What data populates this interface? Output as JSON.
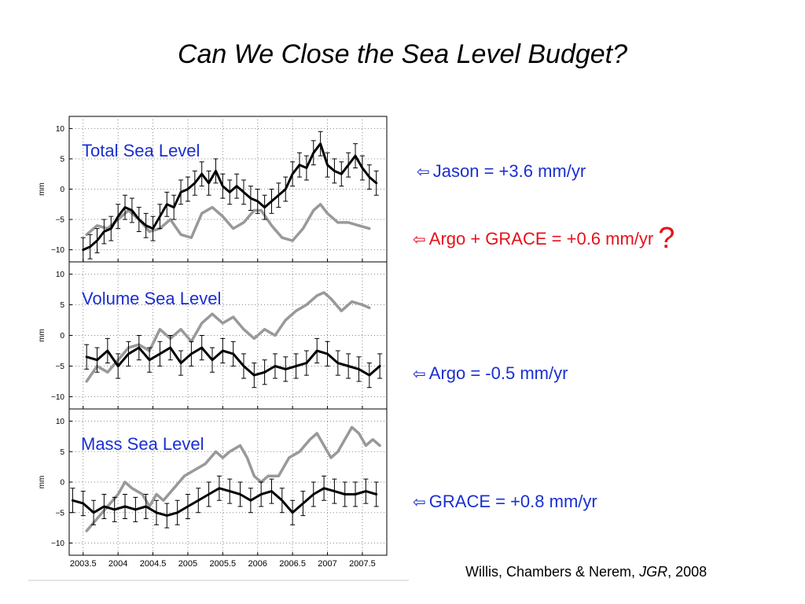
{
  "title": "Can We Close the Sea Level Budget?",
  "annotations": {
    "jason": {
      "arrow": "arrow-left-icon",
      "text": "Jason = +3.6 mm/yr",
      "color": "#1a2fd1"
    },
    "argo_grace": {
      "arrow": "arrow-left-icon",
      "text": "Argo + GRACE = +0.6 mm/yr",
      "qmark": "?",
      "color": "#e8101a"
    },
    "argo": {
      "arrow": "arrow-left-icon",
      "text": "Argo =  -0.5 mm/yr",
      "color": "#1a2fd1"
    },
    "grace": {
      "arrow": "arrow-left-icon",
      "text": "GRACE = +0.8 mm/yr",
      "color": "#1a2fd1"
    }
  },
  "citation": {
    "authors": "Willis, Chambers & Nerem,",
    "journal": "JGR",
    "year": ", 2008"
  },
  "chart_data": [
    {
      "type": "line",
      "label": "Total Sea Level",
      "ylabel": "mm",
      "ylim": [
        -12,
        12
      ],
      "yticks": [
        10,
        5,
        0,
        -5,
        -10
      ],
      "ytick_labels": [
        "10",
        "5",
        "0",
        "−5",
        "−10"
      ],
      "xlim": [
        2003.3,
        2007.85
      ],
      "grid": true,
      "series": [
        {
          "color": "#000000",
          "error_bars": true,
          "x": [
            2003.5,
            2003.6,
            2003.7,
            2003.8,
            2003.9,
            2004.0,
            2004.1,
            2004.2,
            2004.3,
            2004.4,
            2004.5,
            2004.6,
            2004.7,
            2004.8,
            2004.9,
            2005.0,
            2005.1,
            2005.2,
            2005.3,
            2005.4,
            2005.5,
            2005.6,
            2005.7,
            2005.8,
            2005.9,
            2006.0,
            2006.1,
            2006.2,
            2006.3,
            2006.4,
            2006.5,
            2006.6,
            2006.7,
            2006.8,
            2006.9,
            2007.0,
            2007.1,
            2007.2,
            2007.3,
            2007.4,
            2007.5,
            2007.6,
            2007.7
          ],
          "y": [
            -10,
            -9.5,
            -8.5,
            -7,
            -6.5,
            -4.5,
            -3,
            -3.5,
            -5,
            -6,
            -6.5,
            -4.5,
            -2.5,
            -3,
            -0.5,
            0,
            1,
            2.5,
            1,
            3,
            0.5,
            -0.5,
            0.5,
            -0.5,
            -1.5,
            -2,
            -3,
            -2,
            -1,
            0,
            2.5,
            4,
            3.5,
            6,
            7.5,
            4,
            3,
            2.5,
            4,
            5.5,
            3.5,
            2,
            1
          ]
        },
        {
          "color": "#999999",
          "error_bars": false,
          "x": [
            2003.55,
            2003.7,
            2003.85,
            2004.0,
            2004.15,
            2004.3,
            2004.45,
            2004.6,
            2004.75,
            2004.9,
            2005.05,
            2005.2,
            2005.35,
            2005.5,
            2005.65,
            2005.8,
            2005.95,
            2006.05,
            2006.2,
            2006.35,
            2006.5,
            2006.65,
            2006.8,
            2006.9,
            2007.0,
            2007.15,
            2007.3,
            2007.45,
            2007.6
          ],
          "y": [
            -7.5,
            -6,
            -6.5,
            -5,
            -3.5,
            -5,
            -7,
            -6.5,
            -5,
            -7.5,
            -8,
            -4,
            -3,
            -4.5,
            -6.5,
            -5.5,
            -3.5,
            -3.5,
            -6,
            -8,
            -8.5,
            -6.5,
            -3.5,
            -2.5,
            -4,
            -5.5,
            -5.5,
            -6,
            -6.5
          ]
        }
      ]
    },
    {
      "type": "line",
      "label": "Volume Sea Level",
      "ylabel": "mm",
      "ylim": [
        -12,
        12
      ],
      "yticks": [
        10,
        5,
        0,
        -5,
        -10
      ],
      "ytick_labels": [
        "10",
        "5",
        "0",
        "−5",
        "−10"
      ],
      "xlim": [
        2003.3,
        2007.85
      ],
      "grid": true,
      "series": [
        {
          "color": "#000000",
          "error_bars": true,
          "x": [
            2003.55,
            2003.7,
            2003.85,
            2004.0,
            2004.15,
            2004.3,
            2004.45,
            2004.6,
            2004.75,
            2004.9,
            2005.05,
            2005.2,
            2005.35,
            2005.5,
            2005.65,
            2005.8,
            2005.95,
            2006.1,
            2006.25,
            2006.4,
            2006.55,
            2006.7,
            2006.85,
            2007.0,
            2007.15,
            2007.3,
            2007.45,
            2007.6,
            2007.75
          ],
          "y": [
            -3.5,
            -4,
            -2.5,
            -5,
            -3,
            -2,
            -4,
            -3,
            -2,
            -4.5,
            -3,
            -2,
            -4,
            -2.5,
            -3,
            -5,
            -6.5,
            -6,
            -5,
            -5.5,
            -5,
            -4.5,
            -2.5,
            -3,
            -4.5,
            -5,
            -5.5,
            -6.5,
            -5
          ]
        },
        {
          "color": "#999999",
          "error_bars": false,
          "x": [
            2003.55,
            2003.7,
            2003.85,
            2004.0,
            2004.15,
            2004.3,
            2004.45,
            2004.6,
            2004.75,
            2004.9,
            2005.05,
            2005.2,
            2005.35,
            2005.5,
            2005.65,
            2005.8,
            2005.95,
            2006.1,
            2006.25,
            2006.4,
            2006.55,
            2006.7,
            2006.85,
            2006.95,
            2007.05,
            2007.2,
            2007.35,
            2007.5,
            2007.6
          ],
          "y": [
            -7.5,
            -5,
            -6,
            -4,
            -2,
            -1.5,
            -2.5,
            1,
            -0.5,
            1,
            -1,
            2,
            3.5,
            2,
            3,
            1,
            -0.5,
            1,
            0,
            2.5,
            4,
            5,
            6.5,
            7,
            6,
            4,
            5.5,
            5,
            4.5
          ]
        }
      ]
    },
    {
      "type": "line",
      "label": "Mass Sea Level",
      "ylabel": "mm",
      "ylim": [
        -12,
        12
      ],
      "yticks": [
        10,
        5,
        0,
        -5,
        -10
      ],
      "ytick_labels": [
        "10",
        "5",
        "0",
        "−5",
        "−10"
      ],
      "xlim": [
        2003.3,
        2007.85
      ],
      "xticks": [
        2003.5,
        2004,
        2004.5,
        2005,
        2005.5,
        2006,
        2006.5,
        2007,
        2007.5
      ],
      "xtick_labels": [
        "2003.5",
        "2004",
        "2004.5",
        "2005",
        "2005.5",
        "2006",
        "2006.5",
        "2007",
        "2007.5"
      ],
      "grid": true,
      "series": [
        {
          "color": "#000000",
          "error_bars": true,
          "x": [
            2003.35,
            2003.5,
            2003.65,
            2003.8,
            2003.95,
            2004.1,
            2004.25,
            2004.4,
            2004.55,
            2004.7,
            2004.85,
            2005.0,
            2005.15,
            2005.3,
            2005.45,
            2005.6,
            2005.75,
            2005.9,
            2006.05,
            2006.2,
            2006.35,
            2006.5,
            2006.65,
            2006.8,
            2006.95,
            2007.1,
            2007.25,
            2007.4,
            2007.55,
            2007.7
          ],
          "y": [
            -3,
            -3.5,
            -5,
            -4,
            -4.5,
            -4,
            -4.5,
            -4,
            -5,
            -5.5,
            -5,
            -4,
            -3,
            -2,
            -1,
            -1.5,
            -2,
            -3,
            -2,
            -1.5,
            -3,
            -5,
            -3.5,
            -2,
            -1,
            -1.5,
            -2,
            -2,
            -1.5,
            -2
          ]
        },
        {
          "color": "#999999",
          "error_bars": false,
          "x": [
            2003.55,
            2003.7,
            2003.85,
            2004.0,
            2004.1,
            2004.2,
            2004.35,
            2004.45,
            2004.55,
            2004.65,
            2004.8,
            2004.95,
            2005.1,
            2005.25,
            2005.4,
            2005.5,
            2005.6,
            2005.75,
            2005.85,
            2005.95,
            2006.05,
            2006.15,
            2006.3,
            2006.45,
            2006.6,
            2006.75,
            2006.85,
            2006.95,
            2007.05,
            2007.15,
            2007.25,
            2007.35,
            2007.45,
            2007.55,
            2007.65,
            2007.75
          ],
          "y": [
            -8,
            -6,
            -4,
            -2,
            0,
            -1,
            -2,
            -4,
            -2,
            -3,
            -1,
            1,
            2,
            3,
            5,
            4,
            5,
            6,
            4,
            1,
            0,
            1,
            1,
            4,
            5,
            7,
            8,
            6,
            4,
            5,
            7,
            9,
            8,
            6,
            7,
            6
          ]
        }
      ]
    }
  ]
}
